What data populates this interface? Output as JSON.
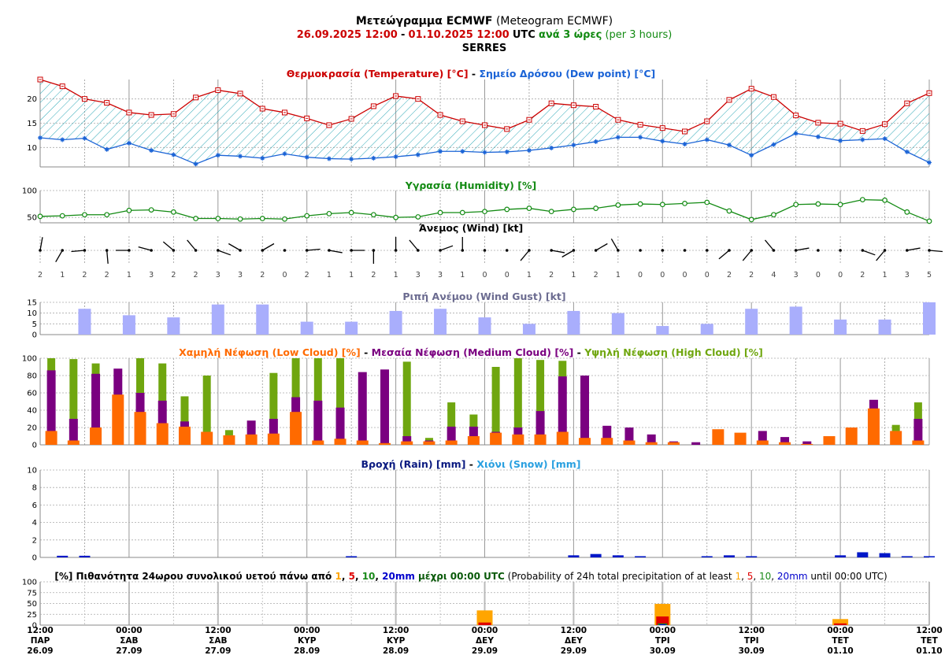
{
  "header": {
    "title_gr": "Μετεώγραμμα ECMWF",
    "title_en": "(Meteogram ECMWF)",
    "period_start": "26.09.2025 12:00",
    "dash": "-",
    "period_end": "01.10.2025 12:00",
    "utc": "UTC",
    "step_gr": "ανά 3 ώρες",
    "step_en": "(per 3 hours)",
    "location": "SERRES"
  },
  "colors": {
    "temperature": "#cc0000",
    "dewpoint": "#1a63d6",
    "humidity": "#128a12",
    "wind": "#000000",
    "gust": "#a9aefc",
    "low_cloud": "#ff6a00",
    "medium_cloud": "#7a0080",
    "high_cloud": "#6fa60f",
    "rain": "#0018c8",
    "snow": "#2aa0e0",
    "prob1": "#ffa500",
    "prob5": "#e00000",
    "prob10": "#1a8a1a",
    "prob20": "#0000cc"
  },
  "time_axis": [
    {
      "time": "12:00",
      "day": "ΠΑΡ",
      "date": "26.09"
    },
    {
      "time": "00:00",
      "day": "ΣΑΒ",
      "date": "27.09"
    },
    {
      "time": "12:00",
      "day": "ΣΑΒ",
      "date": "27.09"
    },
    {
      "time": "00:00",
      "day": "ΚΥΡ",
      "date": "28.09"
    },
    {
      "time": "12:00",
      "day": "ΚΥΡ",
      "date": "28.09"
    },
    {
      "time": "00:00",
      "day": "ΔΕΥ",
      "date": "29.09"
    },
    {
      "time": "12:00",
      "day": "ΔΕΥ",
      "date": "29.09"
    },
    {
      "time": "00:00",
      "day": "ΤΡΙ",
      "date": "30.09"
    },
    {
      "time": "12:00",
      "day": "ΤΡΙ",
      "date": "30.09"
    },
    {
      "time": "00:00",
      "day": "ΤΕΤ",
      "date": "01.10"
    },
    {
      "time": "12:00",
      "day": "ΤΕΤ",
      "date": "01.10"
    }
  ],
  "titles": {
    "temp_gr": "Θερμοκρασία (Temperature) [°C]",
    "temp_dash": "-",
    "dew_gr": "Σημείο Δρόσου (Dew point) [°C]",
    "humidity": "Υγρασία (Humidity) [%]",
    "wind": "Άνεμος (Wind) [kt]",
    "gust": "Ριπή Ανέμου (Wind Gust) [kt]",
    "low_cloud": "Χαμηλή Νέφωση (Low Cloud) [%]",
    "cloud_dash1": "-",
    "medium_cloud": "Μεσαία Νέφωση (Medium Cloud) [%]",
    "cloud_dash2": "-",
    "high_cloud": "Υψηλή Νέφωση (High Cloud) [%]",
    "rain": "Βροχή (Rain) [mm]",
    "rain_dash": "-",
    "snow": "Χιόνι (Snow) [mm]",
    "prob_p1": "[%] Πιθανότητα 24ωρου συνολικού υετού πάνω από ",
    "prob_v1": "1",
    "prob_c1": ", ",
    "prob_v5": "5",
    "prob_c2": ", ",
    "prob_v10": "10",
    "prob_c3": ", ",
    "prob_v20": "20mm",
    "prob_p2": " μέχρι 00:00 UTC",
    "prob_p3": " (Probability of 24h total precipitation of at least ",
    "prob_e1": "1",
    "prob_e2": ", ",
    "prob_e5": "5",
    "prob_e3": ", ",
    "prob_e10": "10",
    "prob_e4": ", ",
    "prob_e20": "20mm",
    "prob_p4": " until 00:00 UTC)"
  },
  "chart_data": [
    {
      "type": "line",
      "name": "temperature_dewpoint",
      "title": "Θερμοκρασία (Temperature) [°C] - Σημείο Δρόσου (Dew point) [°C]",
      "x_step_hours": 3,
      "ylim": [
        6,
        24
      ],
      "yticks": [
        10,
        15,
        20
      ],
      "series": [
        {
          "name": "Θερμοκρασία (Temperature) [°C]",
          "values": [
            24.0,
            22.6,
            20.0,
            19.2,
            17.2,
            16.7,
            16.9,
            20.3,
            21.8,
            21.1,
            18.0,
            17.2,
            16.0,
            14.6,
            15.9,
            18.5,
            20.6,
            20.0,
            16.7,
            15.4,
            14.6,
            13.8,
            15.7,
            19.1,
            18.7,
            18.4,
            15.7,
            14.7,
            14.0,
            13.3,
            15.4,
            19.8,
            22.1,
            20.4,
            16.6,
            15.1,
            14.9,
            13.4,
            14.8,
            19.1,
            21.2
          ]
        },
        {
          "name": "Σημείο Δρόσου (Dew point) [°C]",
          "values": [
            12.0,
            11.6,
            11.9,
            9.6,
            10.9,
            9.4,
            8.5,
            6.6,
            8.4,
            8.2,
            7.8,
            8.7,
            8.0,
            7.7,
            7.6,
            7.8,
            8.1,
            8.5,
            9.2,
            9.2,
            9.0,
            9.1,
            9.4,
            9.9,
            10.5,
            11.2,
            12.1,
            12.1,
            11.3,
            10.7,
            11.6,
            10.5,
            8.4,
            10.6,
            12.9,
            12.2,
            11.4,
            11.6,
            11.8,
            9.1,
            6.9
          ]
        }
      ]
    },
    {
      "type": "line",
      "name": "humidity",
      "title": "Υγρασία (Humidity) [%]",
      "ylim": [
        40,
        100
      ],
      "yticks": [
        50,
        100
      ],
      "series": [
        {
          "name": "Υγρασία (Humidity) [%]",
          "values": [
            52,
            53,
            55,
            55,
            63,
            64,
            60,
            48,
            48,
            47,
            48,
            47,
            53,
            57,
            59,
            55,
            50,
            51,
            59,
            59,
            61,
            65,
            67,
            61,
            65,
            67,
            73,
            75,
            74,
            76,
            78,
            62,
            46,
            55,
            74,
            75,
            74,
            83,
            82,
            60,
            43
          ]
        }
      ]
    },
    {
      "type": "wind_barbs",
      "name": "wind",
      "title": "Άνεμος (Wind) [kt]",
      "speed_kt": [
        2,
        1,
        2,
        2,
        1,
        3,
        2,
        2,
        3,
        3,
        2,
        0,
        2,
        1,
        1,
        2,
        1,
        3,
        3,
        1,
        0,
        0,
        1,
        2,
        1,
        2,
        1,
        0,
        0,
        0,
        0,
        2,
        2,
        4,
        3,
        0,
        0,
        2,
        1,
        3,
        5
      ],
      "direction_deg": [
        10,
        210,
        265,
        175,
        270,
        285,
        310,
        320,
        110,
        300,
        60,
        0,
        85,
        100,
        90,
        180,
        0,
        320,
        70,
        0,
        0,
        0,
        220,
        100,
        240,
        60,
        330,
        0,
        0,
        0,
        0,
        230,
        220,
        320,
        80,
        0,
        0,
        110,
        220,
        80,
        95
      ]
    },
    {
      "type": "bar",
      "name": "wind_gust",
      "title": "Ριπή Ανέμου (Wind Gust) [kt]",
      "ylim": [
        0,
        15
      ],
      "yticks": [
        0,
        5,
        10,
        15
      ],
      "bar_every_hours": 6,
      "series": [
        {
          "name": "Ριπή Ανέμου (Wind Gust) [kt]",
          "values": [
            12,
            9,
            8,
            14,
            14,
            6,
            6,
            11,
            12,
            8,
            5,
            11,
            10,
            4,
            5,
            12,
            13,
            7,
            7,
            15
          ]
        }
      ]
    },
    {
      "type": "bar",
      "name": "clouds",
      "title": "Χαμηλή Νέφωση (Low Cloud) [%] - Μεσαία Νέφωση (Medium Cloud) [%] - Υψηλή Νέφωση (High Cloud) [%]",
      "ylim": [
        0,
        100
      ],
      "yticks": [
        0,
        20,
        40,
        60,
        80,
        100
      ],
      "series": [
        {
          "name": "Υψηλή Νέφωση (High Cloud) [%]",
          "values": [
            100,
            99,
            94,
            0,
            100,
            94,
            56,
            80,
            17,
            0,
            83,
            100,
            100,
            100,
            0,
            0,
            96,
            8,
            49,
            35,
            90,
            100,
            98,
            97,
            0,
            0,
            0,
            0,
            0,
            0,
            0,
            0,
            0,
            0,
            0,
            0,
            0,
            0,
            23,
            49
          ]
        },
        {
          "name": "Μεσαία Νέφωση (Medium Cloud) [%]",
          "values": [
            86,
            30,
            82,
            88,
            60,
            51,
            27,
            12,
            2,
            28,
            30,
            55,
            51,
            43,
            84,
            87,
            10,
            5,
            21,
            21,
            15,
            20,
            39,
            79,
            80,
            22,
            20,
            12,
            4,
            3,
            0,
            0,
            16,
            9,
            4,
            0,
            0,
            52,
            0,
            30
          ]
        },
        {
          "name": "Χαμηλή Νέφωση (Low Cloud) [%]",
          "values": [
            16,
            5,
            20,
            58,
            38,
            25,
            21,
            15,
            11,
            12,
            13,
            38,
            5,
            7,
            5,
            2,
            4,
            4,
            5,
            10,
            14,
            12,
            12,
            15,
            8,
            8,
            5,
            3,
            3,
            0,
            18,
            14,
            5,
            3,
            1,
            10,
            20,
            42,
            16,
            5
          ]
        }
      ]
    },
    {
      "type": "bar",
      "name": "precipitation",
      "title": "Βροχή (Rain) [mm] - Χιόνι (Snow) [mm]",
      "ylim": [
        0,
        10
      ],
      "yticks": [
        0,
        2,
        4,
        6,
        8,
        10
      ],
      "series": [
        {
          "name": "Βροχή (Rain) [mm]",
          "values": [
            0,
            0.1,
            0.1,
            0,
            0,
            0,
            0,
            0,
            0,
            0,
            0,
            0,
            0,
            0,
            0.05,
            0,
            0,
            0,
            0,
            0,
            0,
            0,
            0,
            0,
            0.15,
            0.3,
            0.15,
            0.05,
            0,
            0,
            0.05,
            0.15,
            0.05,
            0,
            0,
            0,
            0.15,
            0.5,
            0.4,
            0.05,
            0.05
          ]
        },
        {
          "name": "Χιόνι (Snow) [mm]",
          "values": [
            0,
            0,
            0,
            0,
            0,
            0,
            0,
            0,
            0,
            0,
            0,
            0,
            0,
            0,
            0,
            0,
            0,
            0,
            0,
            0,
            0,
            0,
            0,
            0,
            0,
            0,
            0,
            0,
            0,
            0,
            0,
            0,
            0,
            0,
            0,
            0,
            0,
            0,
            0,
            0,
            0
          ]
        }
      ]
    },
    {
      "type": "bar",
      "name": "precip_probability",
      "ylim": [
        0,
        100
      ],
      "yticks": [
        0,
        25,
        50,
        75,
        100
      ],
      "categories": [
        "29.09 00:00",
        "30.09 00:00",
        "01.10 00:00"
      ],
      "series": [
        {
          "name": "1mm",
          "values": [
            34,
            49,
            14
          ]
        },
        {
          "name": "5mm",
          "values": [
            6,
            20,
            4
          ]
        },
        {
          "name": "10mm",
          "values": [
            0,
            4,
            0
          ]
        },
        {
          "name": "20mm",
          "values": [
            0,
            2,
            0
          ]
        }
      ]
    }
  ]
}
